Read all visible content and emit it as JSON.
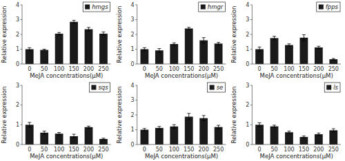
{
  "chart_data": [
    {
      "type": "bar",
      "categories": [
        "0",
        "50",
        "100",
        "150",
        "200",
        "250"
      ],
      "series": [
        {
          "name": "hmgs",
          "color": "#1a1a1a",
          "values": [
            1.0,
            0.95,
            2.05,
            2.85,
            2.35,
            2.05
          ],
          "errors": [
            0.1,
            0.05,
            0.08,
            0.1,
            0.12,
            0.12
          ]
        }
      ],
      "xlabel": "MeJA concentrations(μM)",
      "ylabel": "Relative expression",
      "ylim": [
        0,
        4
      ],
      "yticks": [
        0,
        1,
        2,
        3,
        4
      ],
      "legend": "upper right",
      "grid": false
    },
    {
      "type": "bar",
      "categories": [
        "0",
        "50",
        "100",
        "150",
        "200",
        "250"
      ],
      "series": [
        {
          "name": "hmgr",
          "color": "#1a1a1a",
          "values": [
            1.0,
            0.92,
            1.35,
            2.4,
            1.6,
            1.38
          ],
          "errors": [
            0.1,
            0.12,
            0.08,
            0.08,
            0.18,
            0.08
          ]
        }
      ],
      "xlabel": "MeJA concentrations(μM)",
      "ylabel": "Relative expression",
      "ylim": [
        0,
        4
      ],
      "yticks": [
        0,
        1,
        2,
        3,
        4
      ],
      "legend": "upper right",
      "grid": false
    },
    {
      "type": "bar",
      "categories": [
        "0",
        "50",
        "100",
        "150",
        "200",
        "250"
      ],
      "series": [
        {
          "name": "fpps",
          "color": "#1a1a1a",
          "values": [
            1.0,
            1.75,
            1.28,
            1.78,
            1.12,
            0.32
          ],
          "errors": [
            0.15,
            0.12,
            0.08,
            0.2,
            0.08,
            0.05
          ]
        }
      ],
      "xlabel": "MeJA concentrations(μM)",
      "ylabel": "Relative expression",
      "ylim": [
        0,
        4
      ],
      "yticks": [
        0,
        1,
        2,
        3,
        4
      ],
      "legend": "upper right",
      "grid": false
    },
    {
      "type": "bar",
      "categories": [
        "0",
        "50",
        "100",
        "150",
        "200",
        "250"
      ],
      "series": [
        {
          "name": "sqs",
          "color": "#1a1a1a",
          "values": [
            1.0,
            0.6,
            0.55,
            0.42,
            0.88,
            0.28
          ],
          "errors": [
            0.12,
            0.08,
            0.06,
            0.1,
            0.05,
            0.04
          ]
        }
      ],
      "xlabel": "MeJA concentrations(μM)",
      "ylabel": "Relative expression",
      "ylim": [
        0,
        3
      ],
      "yticks": [
        0,
        1,
        2,
        3
      ],
      "legend": "upper right",
      "grid": false
    },
    {
      "type": "bar",
      "categories": [
        "0",
        "50",
        "100",
        "150",
        "200",
        "250"
      ],
      "series": [
        {
          "name": "se",
          "color": "#1a1a1a",
          "values": [
            1.0,
            1.12,
            1.22,
            1.88,
            1.78,
            1.18
          ],
          "errors": [
            0.08,
            0.1,
            0.12,
            0.22,
            0.18,
            0.12
          ]
        }
      ],
      "xlabel": "MeJA concentrations(μM)",
      "ylabel": "Relative expression",
      "ylim": [
        0,
        4
      ],
      "yticks": [
        0,
        1,
        2,
        3,
        4
      ],
      "legend": "upper right",
      "grid": false
    },
    {
      "type": "bar",
      "categories": [
        "0",
        "50",
        "100",
        "150",
        "200",
        "250"
      ],
      "series": [
        {
          "name": "ls",
          "color": "#1a1a1a",
          "values": [
            1.0,
            0.92,
            0.62,
            0.38,
            0.52,
            0.72
          ],
          "errors": [
            0.1,
            0.06,
            0.06,
            0.05,
            0.06,
            0.08
          ]
        }
      ],
      "xlabel": "MeJA concentrations(μM)",
      "ylabel": "Relative expression",
      "ylim": [
        0,
        3
      ],
      "yticks": [
        0,
        1,
        2,
        3
      ],
      "legend": "upper right",
      "grid": false
    }
  ]
}
